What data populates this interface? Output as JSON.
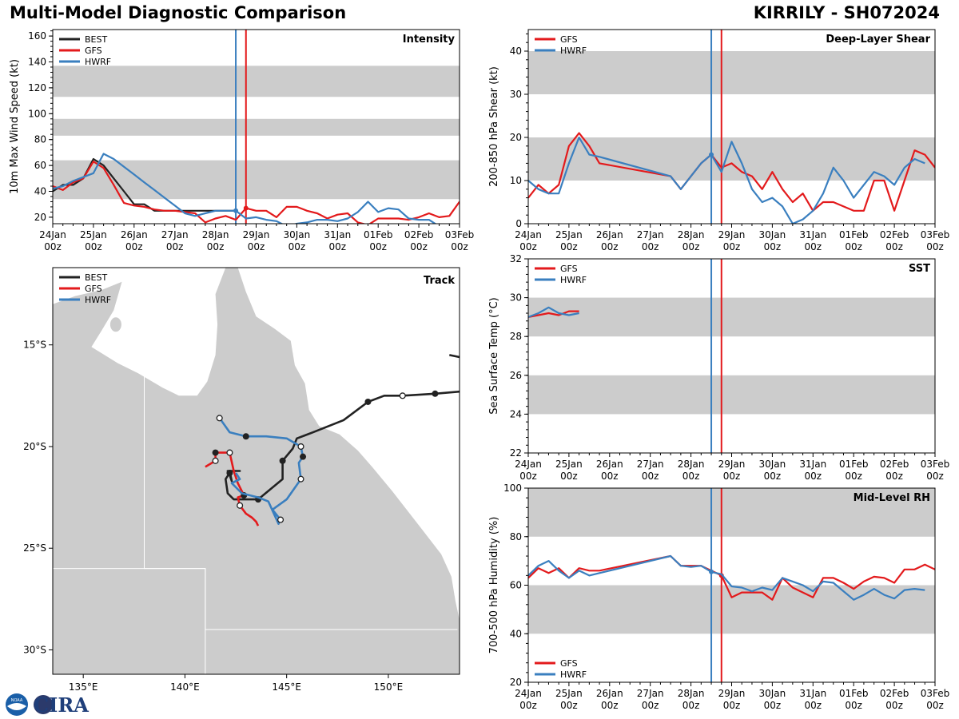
{
  "header": {
    "title": "Multi-Model Diagnostic Comparison",
    "storm": "KIRRILY - SH072024"
  },
  "colors": {
    "best": "#222222",
    "gfs": "#e31a1c",
    "hwrf": "#3a7fbf",
    "band": "#cccccc",
    "land": "#cccccc"
  },
  "time_axis": {
    "start_day": 0,
    "end_day": 10,
    "ticks": [
      {
        "day": 0,
        "l1": "24Jan",
        "l2": "00z"
      },
      {
        "day": 1,
        "l1": "25Jan",
        "l2": "00z"
      },
      {
        "day": 2,
        "l1": "26Jan",
        "l2": "00z"
      },
      {
        "day": 3,
        "l1": "27Jan",
        "l2": "00z"
      },
      {
        "day": 4,
        "l1": "28Jan",
        "l2": "00z"
      },
      {
        "day": 5,
        "l1": "29Jan",
        "l2": "00z"
      },
      {
        "day": 6,
        "l1": "30Jan",
        "l2": "00z"
      },
      {
        "day": 7,
        "l1": "31Jan",
        "l2": "00z"
      },
      {
        "day": 8,
        "l1": "01Feb",
        "l2": "00z"
      },
      {
        "day": 9,
        "l1": "02Feb",
        "l2": "00z"
      },
      {
        "day": 10,
        "l1": "03Feb",
        "l2": "00z"
      }
    ],
    "init_hwrf_day": 4.5,
    "init_gfs_day": 4.75
  },
  "chart_data": [
    {
      "id": "intensity",
      "type": "line",
      "title": "Intensity",
      "ylabel": "10m Max Wind Speed (kt)",
      "ylim": [
        15,
        165
      ],
      "yticks": [
        20,
        40,
        60,
        80,
        100,
        120,
        140,
        160
      ],
      "bands": [
        [
          34,
          64
        ],
        [
          83,
          96
        ],
        [
          113,
          137
        ]
      ],
      "legend": [
        "BEST",
        "GFS",
        "HWRF"
      ],
      "legend_position": "top-left",
      "series": [
        {
          "name": "BEST",
          "key": "best",
          "x": [
            0,
            0.25,
            0.5,
            0.75,
            1.0,
            1.25,
            1.5,
            1.75,
            2.0,
            2.25,
            2.5,
            2.75,
            3.0,
            3.25,
            3.5,
            3.75,
            4.0,
            4.25,
            4.5
          ],
          "y": [
            40,
            45,
            45,
            50,
            65,
            60,
            50,
            40,
            30,
            30,
            25,
            25,
            25,
            25,
            25,
            25,
            25,
            25,
            25
          ]
        },
        {
          "name": "GFS",
          "key": "gfs",
          "x": [
            0,
            0.25,
            0.5,
            0.75,
            1.0,
            1.25,
            1.5,
            1.75,
            2.0,
            2.25,
            2.5,
            2.75,
            3.0,
            3.25,
            3.5,
            3.75,
            4.0,
            4.25,
            4.5,
            4.75,
            5.0,
            5.25,
            5.5,
            5.75,
            6.0,
            6.25,
            6.5,
            6.75,
            7.0,
            7.25,
            7.5,
            7.75,
            8.0,
            8.25,
            8.5,
            8.75,
            9.0,
            9.25,
            9.5,
            9.75,
            10.0
          ],
          "y": [
            44,
            41,
            47,
            50,
            63,
            58,
            45,
            31,
            29,
            28,
            26,
            25,
            25,
            24,
            23,
            16,
            19,
            21,
            18,
            27,
            25,
            25,
            20,
            28,
            28,
            25,
            23,
            19,
            22,
            23,
            16,
            14,
            19,
            19,
            19,
            18,
            20,
            23,
            20,
            21,
            32
          ]
        },
        {
          "name": "HWRF",
          "key": "hwrf",
          "x": [
            0,
            0.25,
            0.5,
            0.75,
            1.0,
            1.25,
            1.5,
            1.75,
            2.0,
            2.25,
            2.5,
            2.75,
            3.0,
            3.25,
            3.5,
            3.75,
            4.0,
            4.25,
            4.5,
            4.75,
            5.0,
            5.25,
            5.5,
            5.75,
            6.0,
            6.25,
            6.5,
            6.75,
            7.0,
            7.25,
            7.5,
            7.75,
            8.0,
            8.25,
            8.5,
            8.75,
            9.0,
            9.25,
            9.5
          ],
          "y": [
            42,
            44,
            48,
            51,
            54,
            69,
            65,
            59,
            53,
            47,
            41,
            35,
            29,
            23,
            21,
            23,
            25,
            25,
            25,
            19,
            20,
            18,
            17,
            13,
            15,
            16,
            18,
            18,
            17,
            19,
            24,
            32,
            24,
            27,
            26,
            19,
            18,
            18,
            13
          ]
        }
      ]
    },
    {
      "id": "shear",
      "type": "line",
      "title": "Deep-Layer Shear",
      "ylabel": "200-850 hPa Shear (kt)",
      "ylim": [
        0,
        45
      ],
      "yticks": [
        0,
        10,
        20,
        30,
        40
      ],
      "bands": [
        [
          10,
          20
        ],
        [
          30,
          40
        ]
      ],
      "legend": [
        "GFS",
        "HWRF"
      ],
      "legend_position": "top-left",
      "series": [
        {
          "name": "GFS",
          "key": "gfs",
          "x": [
            0,
            0.25,
            0.5,
            0.75,
            1.0,
            1.25,
            1.5,
            1.75,
            3.5,
            3.75,
            4.0,
            4.25,
            4.5,
            4.75,
            5.0,
            5.25,
            5.5,
            5.75,
            6.0,
            6.25,
            6.5,
            6.75,
            7.0,
            7.25,
            7.5,
            7.75,
            8.0,
            8.25,
            8.5,
            8.75,
            9.0,
            9.25,
            9.5,
            9.75,
            10.0
          ],
          "y": [
            6,
            9,
            7,
            9,
            18,
            21,
            18,
            14,
            11,
            8,
            11,
            14,
            16,
            13,
            14,
            12,
            11,
            8,
            12,
            8,
            5,
            7,
            3,
            5,
            5,
            4,
            3,
            3,
            10,
            10,
            3,
            10,
            17,
            16,
            13
          ]
        },
        {
          "name": "HWRF",
          "key": "hwrf",
          "x": [
            0,
            0.25,
            0.5,
            0.75,
            1.0,
            1.25,
            1.5,
            1.75,
            3.5,
            3.75,
            4.0,
            4.25,
            4.5,
            4.75,
            5.0,
            5.25,
            5.5,
            5.75,
            6.0,
            6.25,
            6.5,
            6.75,
            7.0,
            7.25,
            7.5,
            7.75,
            8.0,
            8.25,
            8.5,
            8.75,
            9.0,
            9.25,
            9.5,
            9.75
          ],
          "y": [
            10,
            8,
            7,
            7,
            14,
            20,
            16,
            15.5,
            11,
            8,
            11,
            14,
            16,
            12,
            19,
            14,
            8,
            5,
            6,
            4,
            0,
            1,
            3,
            7,
            13,
            10,
            6,
            9,
            12,
            11,
            9,
            13,
            15,
            14
          ]
        }
      ]
    },
    {
      "id": "sst",
      "type": "line",
      "title": "SST",
      "ylabel": "Sea Surface Temp (°C)",
      "ylim": [
        22,
        32
      ],
      "yticks": [
        22,
        24,
        26,
        28,
        30,
        32
      ],
      "bands": [
        [
          24,
          26
        ],
        [
          28,
          30
        ]
      ],
      "legend": [
        "GFS",
        "HWRF"
      ],
      "legend_position": "top-left",
      "series": [
        {
          "name": "GFS",
          "key": "gfs",
          "x": [
            0,
            0.25,
            0.5,
            0.75,
            1.0,
            1.25
          ],
          "y": [
            29.0,
            29.1,
            29.2,
            29.1,
            29.3,
            29.3
          ]
        },
        {
          "name": "HWRF",
          "key": "hwrf",
          "x": [
            0,
            0.25,
            0.5,
            0.75,
            1.0,
            1.25
          ],
          "y": [
            29.0,
            29.2,
            29.5,
            29.2,
            29.1,
            29.2
          ]
        }
      ]
    },
    {
      "id": "rh",
      "type": "line",
      "title": "Mid-Level RH",
      "ylabel": "700-500 hPa Humidity (%)",
      "ylim": [
        20,
        100
      ],
      "yticks": [
        20,
        40,
        60,
        80,
        100
      ],
      "bands": [
        [
          40,
          60
        ],
        [
          80,
          100
        ]
      ],
      "legend": [
        "GFS",
        "HWRF"
      ],
      "legend_position": "bottom-left",
      "series": [
        {
          "name": "GFS",
          "key": "gfs",
          "x": [
            0,
            0.25,
            0.5,
            0.75,
            1.0,
            1.25,
            1.5,
            1.75,
            3.5,
            3.75,
            4.0,
            4.25,
            4.5,
            4.75,
            5.0,
            5.25,
            5.5,
            5.75,
            6.0,
            6.25,
            6.5,
            6.75,
            7.0,
            7.25,
            7.5,
            7.75,
            8.0,
            8.25,
            8.5,
            8.75,
            9.0,
            9.25,
            9.5,
            9.75,
            10.0
          ],
          "y": [
            63,
            67,
            65,
            67,
            63,
            67,
            66,
            66,
            72,
            68,
            68,
            68,
            66,
            64,
            55,
            57,
            57,
            57,
            54,
            63,
            59,
            57,
            55,
            63,
            63,
            61,
            58.5,
            61.5,
            63.5,
            63,
            61,
            66.5,
            66.5,
            68.5,
            66.5
          ]
        },
        {
          "name": "HWRF",
          "key": "hwrf",
          "x": [
            0,
            0.25,
            0.5,
            0.75,
            1.0,
            1.25,
            1.5,
            1.75,
            3.5,
            3.75,
            4.0,
            4.25,
            4.5,
            4.75,
            5.0,
            5.25,
            5.5,
            5.75,
            6.0,
            6.25,
            6.5,
            6.75,
            7.0,
            7.25,
            7.5,
            7.75,
            8.0,
            8.25,
            8.5,
            8.75,
            9.0,
            9.25,
            9.5,
            9.75
          ],
          "y": [
            64,
            68,
            70,
            66,
            63,
            66,
            64,
            65,
            72,
            68,
            67.5,
            68,
            65.5,
            64.5,
            59.5,
            59,
            57.5,
            59,
            58,
            63,
            61.5,
            60,
            57.5,
            61.5,
            61,
            57.5,
            54,
            56,
            58.5,
            56,
            54.5,
            58,
            58.5,
            58
          ]
        }
      ]
    },
    {
      "id": "track",
      "type": "scatter",
      "title": "Track",
      "xlim": [
        133.5,
        153.5
      ],
      "ylim": [
        -31.2,
        -11.2
      ],
      "xticks": [
        {
          "v": 135,
          "label": "135°E"
        },
        {
          "v": 140,
          "label": "140°E"
        },
        {
          "v": 145,
          "label": "145°E"
        },
        {
          "v": 150,
          "label": "150°E"
        }
      ],
      "yticks": [
        {
          "v": -15,
          "label": "15°S"
        },
        {
          "v": -20,
          "label": "20°S"
        },
        {
          "v": -25,
          "label": "25°S"
        },
        {
          "v": -30,
          "label": "30°S"
        }
      ],
      "legend": [
        "BEST",
        "GFS",
        "HWRF"
      ],
      "legend_position": "top-left",
      "tracks": [
        {
          "name": "BEST",
          "key": "best",
          "lon": [
            153.5,
            152.3,
            150.7,
            149.8,
            149.0,
            147.8,
            146.3,
            145.5,
            145.3,
            144.8,
            144.8,
            144.8,
            143.6,
            143.6,
            142.4,
            142.1,
            142.0,
            142.2,
            142.1,
            142.7,
            142.2,
            142.3,
            142.2
          ],
          "lat": [
            -17.3,
            -17.4,
            -17.5,
            -17.5,
            -17.8,
            -18.7,
            -19.3,
            -19.6,
            -20.1,
            -20.7,
            -21.6,
            -21.6,
            -22.6,
            -22.6,
            -22.6,
            -22.3,
            -21.6,
            -21.3,
            -21.2,
            -21.2,
            -21.2,
            -21.7,
            -21.4
          ],
          "open": [
            2
          ],
          "filled": [
            1,
            4,
            9,
            13,
            17
          ]
        },
        {
          "name": "GFS",
          "key": "gfs",
          "lon": [
            141.0,
            141.5,
            141.5,
            142.2,
            142.4,
            142.6,
            142.9,
            142.6,
            142.7,
            143.0,
            143.3,
            143.5,
            143.6
          ],
          "lat": [
            -21.0,
            -20.7,
            -20.3,
            -20.3,
            -21.2,
            -21.8,
            -22.4,
            -22.5,
            -22.9,
            -23.3,
            -23.5,
            -23.7,
            -23.9
          ],
          "open": [
            1,
            3,
            8
          ],
          "filled": [
            2,
            6
          ]
        },
        {
          "name": "HWRF",
          "key": "hwrf",
          "lon": [
            141.7,
            142.2,
            143.0,
            144.0,
            145.0,
            145.7,
            145.8,
            145.6,
            145.7,
            145.0,
            144.3,
            144.7,
            144.6,
            144.1,
            143.6,
            142.8,
            142.3,
            142.7,
            142.5
          ],
          "lat": [
            -18.6,
            -19.3,
            -19.5,
            -19.5,
            -19.6,
            -20.0,
            -20.5,
            -20.8,
            -21.6,
            -22.6,
            -23.1,
            -23.6,
            -23.8,
            -22.7,
            -22.5,
            -22.3,
            -21.8,
            -21.6,
            -21.3
          ],
          "open": [
            0,
            5,
            8,
            11
          ],
          "filled": [
            2,
            6
          ]
        },
        {
          "name": "BEST-prev",
          "key": "best",
          "legend": false,
          "lon": [
            153.5,
            153.0
          ],
          "lat": [
            -15.6,
            -15.5
          ],
          "open": [],
          "filled": []
        }
      ]
    }
  ],
  "logo": {
    "text": "CIRA",
    "badge": "NOAA"
  }
}
